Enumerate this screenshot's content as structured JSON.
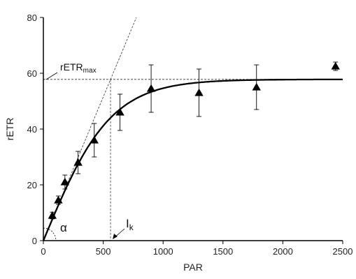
{
  "chart_data": {
    "type": "scatter",
    "xlabel": "PAR",
    "ylabel": "rETR",
    "xlim": [
      0,
      2500
    ],
    "ylim": [
      0,
      80
    ],
    "x_ticks": [
      0,
      500,
      1000,
      1500,
      2000,
      2500
    ],
    "y_ticks": [
      0,
      20,
      40,
      60,
      80
    ],
    "grid": false,
    "series": [
      {
        "marker": "triangle",
        "points": [
          {
            "x": 75,
            "y": 9,
            "err": 1.2
          },
          {
            "x": 125,
            "y": 14.5,
            "err": 1.5
          },
          {
            "x": 180,
            "y": 21,
            "err": 2.5
          },
          {
            "x": 290,
            "y": 28,
            "err": 4
          },
          {
            "x": 425,
            "y": 36,
            "err": 6
          },
          {
            "x": 640,
            "y": 46,
            "err": 6.5
          },
          {
            "x": 900,
            "y": 54.5,
            "err": 8.5
          },
          {
            "x": 1300,
            "y": 53,
            "err": 8.5
          },
          {
            "x": 1780,
            "y": 55,
            "err": 8
          },
          {
            "x": 2440,
            "y": 62.5,
            "err": 1.5
          }
        ]
      }
    ],
    "fit": {
      "rETRmax": 57.8,
      "alpha": 0.103
    },
    "annotations": {
      "retrmax": {
        "base": "rETR",
        "sub": "max",
        "y": 57.8
      },
      "ik": {
        "base": "I",
        "sub": "k",
        "x": 561
      },
      "alpha": {
        "text": "α"
      }
    }
  }
}
